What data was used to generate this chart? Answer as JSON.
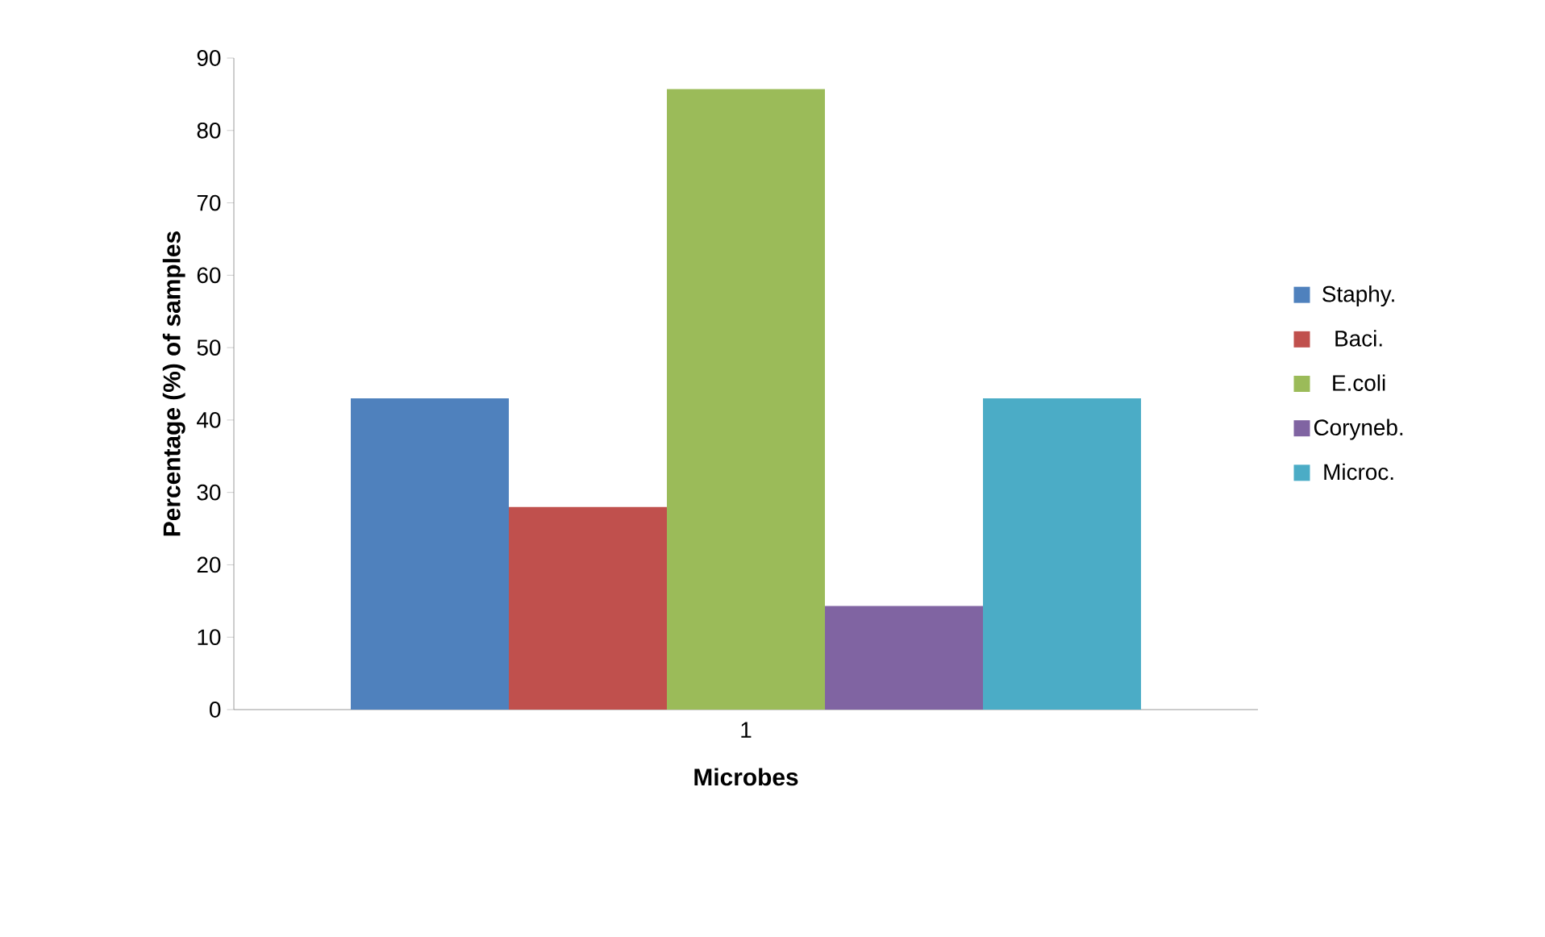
{
  "chart_data": {
    "type": "bar",
    "xlabel": "Microbes",
    "ylabel": "Percentage (%) of samples",
    "categories": [
      "1"
    ],
    "series": [
      {
        "name": "Staphy.",
        "color": "#4f81bd",
        "values": [
          43
        ]
      },
      {
        "name": "Baci.",
        "color": "#c0504d",
        "values": [
          28
        ]
      },
      {
        "name": "E.coli",
        "color": "#9bbb59",
        "values": [
          85.7
        ]
      },
      {
        "name": "Coryneb.",
        "color": "#8064a2",
        "values": [
          14.3
        ]
      },
      {
        "name": "Microc.",
        "color": "#4bacc6",
        "values": [
          43
        ]
      }
    ],
    "ylim": [
      0,
      90
    ],
    "yticks": [
      0,
      10,
      20,
      30,
      40,
      50,
      60,
      70,
      80,
      90
    ],
    "grid": false,
    "legend": "right"
  }
}
